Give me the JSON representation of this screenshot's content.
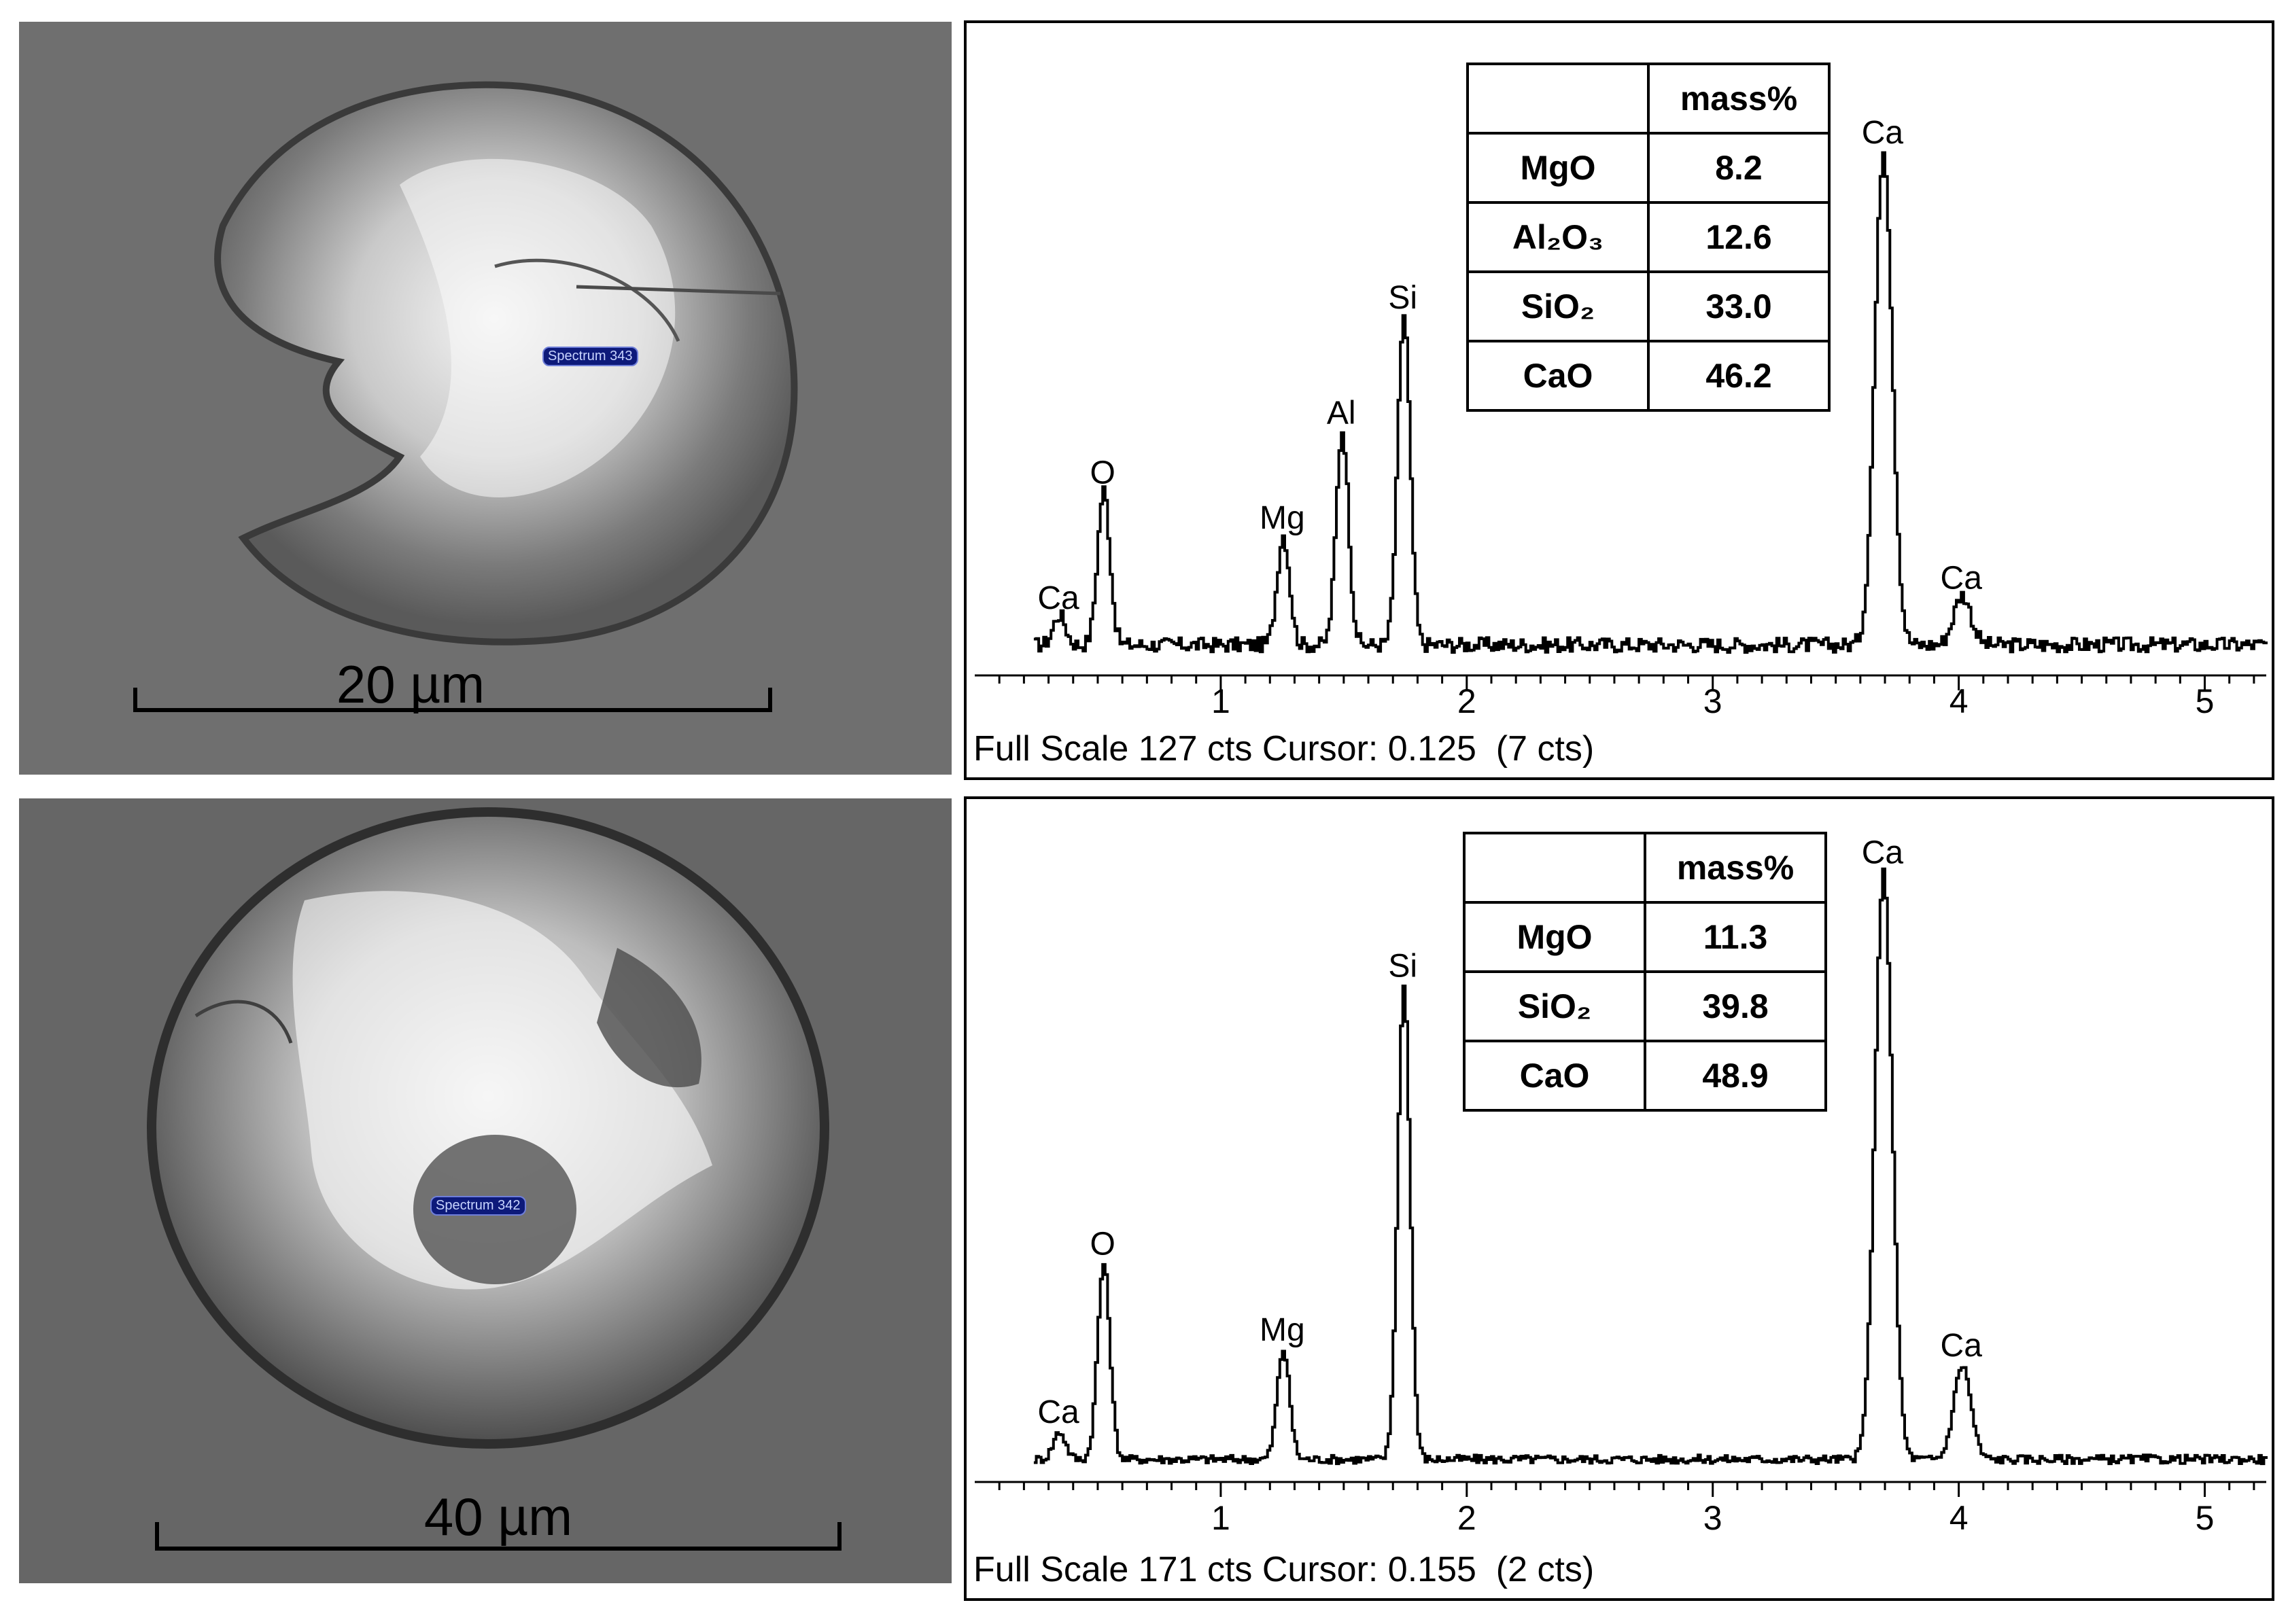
{
  "micrographs": [
    {
      "scale_label": "20 µm",
      "spectrum_tag": "Spectrum 343"
    },
    {
      "scale_label": "40 µm",
      "spectrum_tag": "Spectrum 342"
    }
  ],
  "chart_data": [
    {
      "type": "line",
      "xlabel": "",
      "ylabel": "",
      "xlim": [
        0,
        5.25
      ],
      "ylim": [
        0,
        127
      ],
      "x_ticks": [
        "1",
        "2",
        "3",
        "4",
        "5"
      ],
      "footer": "Full Scale 127 cts Cursor: 0.125  (7 cts)",
      "peaks": [
        {
          "label": "Ca",
          "x": 0.34,
          "y": 6
        },
        {
          "label": "O",
          "x": 0.52,
          "y": 31
        },
        {
          "label": "Mg",
          "x": 1.25,
          "y": 22
        },
        {
          "label": "Al",
          "x": 1.49,
          "y": 43
        },
        {
          "label": "Si",
          "x": 1.74,
          "y": 66
        },
        {
          "label": "Ca",
          "x": 3.69,
          "y": 99
        },
        {
          "label": "Ca",
          "x": 4.01,
          "y": 10
        }
      ],
      "composition": {
        "header": [
          "",
          "mass%"
        ],
        "rows": [
          {
            "oxide": "MgO",
            "value": "8.2"
          },
          {
            "oxide": "Al₂O₃",
            "value": "12.6"
          },
          {
            "oxide": "SiO₂",
            "value": "33.0"
          },
          {
            "oxide": "CaO",
            "value": "46.2"
          }
        ]
      }
    },
    {
      "type": "line",
      "xlabel": "",
      "ylabel": "",
      "xlim": [
        0,
        5.25
      ],
      "ylim": [
        0,
        171
      ],
      "x_ticks": [
        "1",
        "2",
        "3",
        "4",
        "5"
      ],
      "footer": "Full Scale 171 cts Cursor: 0.155  (2 cts)",
      "peaks": [
        {
          "label": "Ca",
          "x": 0.34,
          "y": 7
        },
        {
          "label": "O",
          "x": 0.52,
          "y": 50
        },
        {
          "label": "Mg",
          "x": 1.25,
          "y": 28
        },
        {
          "label": "Si",
          "x": 1.74,
          "y": 121
        },
        {
          "label": "Ca",
          "x": 3.69,
          "y": 150
        },
        {
          "label": "Ca",
          "x": 4.01,
          "y": 24
        }
      ],
      "composition": {
        "header": [
          "",
          "mass%"
        ],
        "rows": [
          {
            "oxide": "MgO",
            "value": "11.3"
          },
          {
            "oxide": "SiO₂",
            "value": "39.8"
          },
          {
            "oxide": "CaO",
            "value": "48.9"
          }
        ]
      }
    }
  ]
}
